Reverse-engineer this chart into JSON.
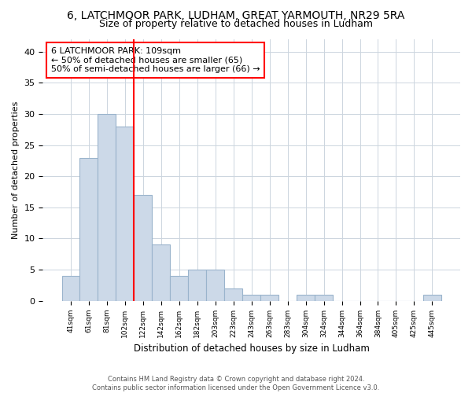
{
  "title1": "6, LATCHMOOR PARK, LUDHAM, GREAT YARMOUTH, NR29 5RA",
  "title2": "Size of property relative to detached houses in Ludham",
  "xlabel": "Distribution of detached houses by size in Ludham",
  "ylabel": "Number of detached properties",
  "bar_labels": [
    "41sqm",
    "61sqm",
    "81sqm",
    "102sqm",
    "122sqm",
    "142sqm",
    "162sqm",
    "182sqm",
    "203sqm",
    "223sqm",
    "243sqm",
    "263sqm",
    "283sqm",
    "304sqm",
    "324sqm",
    "344sqm",
    "364sqm",
    "384sqm",
    "405sqm",
    "425sqm",
    "445sqm"
  ],
  "bar_values": [
    4,
    23,
    30,
    28,
    17,
    9,
    4,
    5,
    5,
    2,
    1,
    1,
    0,
    1,
    1,
    0,
    0,
    0,
    0,
    0,
    1
  ],
  "bar_color": "#ccd9e8",
  "bar_edgecolor": "#9ab4cc",
  "ylim": [
    0,
    42
  ],
  "yticks": [
    0,
    5,
    10,
    15,
    20,
    25,
    30,
    35,
    40
  ],
  "red_line_x": 4.0,
  "annotation_text": "6 LATCHMOOR PARK: 109sqm\n← 50% of detached houses are smaller (65)\n50% of semi-detached houses are larger (66) →",
  "footer": "Contains HM Land Registry data © Crown copyright and database right 2024.\nContains public sector information licensed under the Open Government Licence v3.0.",
  "background_color": "#ffffff",
  "grid_color": "#ccd5de",
  "title_fontsize": 10,
  "subtitle_fontsize": 9
}
